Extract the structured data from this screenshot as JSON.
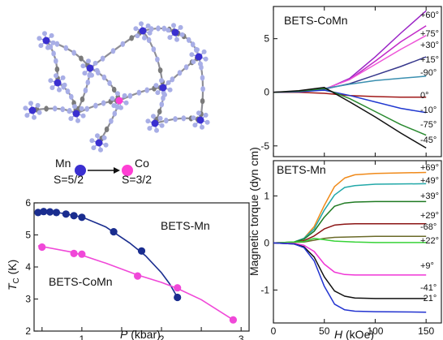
{
  "structure": {
    "mn_label": "Mn",
    "co_label": "Co",
    "mn_spin": "S=5/2",
    "co_spin": "S=3/2",
    "colors": {
      "mn": "#3a2fd0",
      "co": "#ff3fd4",
      "n": "#a8aee6",
      "c": "#7a7a7a"
    }
  },
  "chart_data": [
    {
      "type": "scatter",
      "xlabel_italic": "P",
      "xlabel_unit": " (kbar)",
      "ylabel_main": "T",
      "ylabel_sub": "C",
      "ylabel_unit": " (K)",
      "xlim": [
        0.4,
        3.1
      ],
      "ylim": [
        2,
        6
      ],
      "xticks": [
        0.5,
        1,
        1.5,
        2,
        2.5,
        3
      ],
      "xtick_labels": [
        "",
        "1",
        "",
        "2",
        "",
        "3"
      ],
      "yticks": [
        2,
        3,
        4,
        5,
        6
      ],
      "ytick_labels": [
        "2",
        "3",
        "4",
        "5",
        "6"
      ],
      "series": [
        {
          "name": "BETS-Mn",
          "color": "#1a2d8f",
          "x": [
            0.45,
            0.52,
            0.6,
            0.68,
            0.8,
            0.9,
            1.0,
            1.4,
            1.75,
            2.2
          ],
          "y": [
            5.7,
            5.73,
            5.72,
            5.7,
            5.65,
            5.6,
            5.55,
            5.1,
            4.5,
            3.05
          ],
          "curve_x": [
            0.45,
            0.7,
            1.0,
            1.3,
            1.6,
            1.8,
            2.0,
            2.1,
            2.2
          ],
          "curve_y": [
            5.72,
            5.7,
            5.56,
            5.25,
            4.75,
            4.35,
            3.82,
            3.48,
            3.05
          ]
        },
        {
          "name": "BETS-CoMn",
          "color": "#f048d8",
          "x": [
            0.5,
            0.9,
            1.0,
            1.7,
            2.2,
            2.9
          ],
          "y": [
            4.62,
            4.42,
            4.4,
            3.72,
            3.35,
            2.35
          ],
          "curve_x": [
            0.45,
            0.9,
            1.3,
            1.7,
            2.0,
            2.2,
            2.5,
            2.9
          ],
          "curve_y": [
            4.66,
            4.45,
            4.12,
            3.75,
            3.52,
            3.33,
            2.98,
            2.35
          ]
        }
      ]
    },
    {
      "type": "line",
      "title": "BETS-CoMn",
      "shared_ylabel": "Magnetic torque (dyn cm)",
      "xlim": [
        0,
        165
      ],
      "ylim": [
        -6,
        8
      ],
      "yticks": [
        -5,
        0,
        5
      ],
      "ytick_labels": [
        "-5",
        "0",
        "5"
      ],
      "xticks": [
        0,
        50,
        100,
        150
      ],
      "series": [
        {
          "name": "+60°",
          "color": "#9b24c6",
          "x": [
            0,
            25,
            50,
            75,
            100,
            125,
            150
          ],
          "y": [
            0,
            0.05,
            0.25,
            1.3,
            3.3,
            5.5,
            7.6
          ]
        },
        {
          "name": "+75°",
          "color": "#c22bc8",
          "x": [
            0,
            25,
            50,
            75,
            100,
            125,
            150
          ],
          "y": [
            0,
            0.05,
            0.3,
            1.2,
            2.9,
            4.7,
            6.2
          ]
        },
        {
          "name": "+30°",
          "color": "#ee55d8",
          "x": [
            0,
            25,
            50,
            75,
            100,
            125,
            150
          ],
          "y": [
            0,
            0.05,
            0.3,
            1.2,
            2.6,
            4.0,
            5.3
          ]
        },
        {
          "name": "+15°",
          "color": "#36378c",
          "x": [
            0,
            25,
            50,
            75,
            100,
            125,
            150
          ],
          "y": [
            0,
            0.05,
            0.3,
            0.8,
            1.6,
            2.4,
            3.3
          ]
        },
        {
          "name": "-90°",
          "color": "#3a8fb0",
          "x": [
            0,
            25,
            50,
            75,
            100,
            125,
            150
          ],
          "y": [
            0,
            0.05,
            0.35,
            0.75,
            1.1,
            1.3,
            1.5
          ]
        },
        {
          "name": "0°",
          "color": "#a01818",
          "x": [
            0,
            25,
            50,
            75,
            100,
            125,
            150
          ],
          "y": [
            0,
            0,
            -0.1,
            -0.3,
            -0.4,
            -0.45,
            -0.45
          ]
        },
        {
          "name": "-10°",
          "color": "#2038d0",
          "x": [
            0,
            25,
            50,
            75,
            100,
            125,
            150
          ],
          "y": [
            0,
            0.05,
            0.2,
            -0.3,
            -0.9,
            -1.5,
            -1.9
          ]
        },
        {
          "name": "-75°",
          "color": "#2a8a30",
          "x": [
            0,
            25,
            50,
            75,
            100,
            125,
            150
          ],
          "y": [
            0,
            0.1,
            0.35,
            -0.6,
            -1.8,
            -3.0,
            -4.0
          ]
        },
        {
          "name": "-45°",
          "color": "#111111",
          "x": [
            0,
            25,
            50,
            75,
            100,
            125,
            150
          ],
          "y": [
            0,
            0.15,
            0.45,
            -0.9,
            -2.3,
            -3.8,
            -5.2
          ]
        }
      ]
    },
    {
      "type": "line",
      "title": "BETS-Mn",
      "xlabel_italic": "H",
      "xlabel_unit": " (kOe)",
      "xlim": [
        0,
        165
      ],
      "ylim": [
        -1.7,
        1.75
      ],
      "yticks": [
        -1,
        0,
        1
      ],
      "ytick_labels": [
        "-1",
        "0",
        "1"
      ],
      "xticks": [
        0,
        50,
        100,
        150
      ],
      "xtick_labels": [
        "0",
        "50",
        "100",
        "150"
      ],
      "series": [
        {
          "name": "+69°",
          "color": "#f08a1a",
          "x": [
            0,
            20,
            30,
            40,
            50,
            60,
            70,
            80,
            100,
            150
          ],
          "y": [
            0,
            0.02,
            0.1,
            0.35,
            0.8,
            1.2,
            1.38,
            1.45,
            1.48,
            1.5
          ]
        },
        {
          "name": "+49°",
          "color": "#22a8a8",
          "x": [
            0,
            20,
            30,
            40,
            50,
            60,
            70,
            80,
            100,
            150
          ],
          "y": [
            0,
            0.02,
            0.1,
            0.3,
            0.7,
            1.02,
            1.18,
            1.22,
            1.25,
            1.26
          ]
        },
        {
          "name": "+39°",
          "color": "#1f7a22",
          "x": [
            0,
            20,
            30,
            40,
            50,
            60,
            70,
            80,
            100,
            150
          ],
          "y": [
            0,
            0.02,
            0.08,
            0.25,
            0.55,
            0.78,
            0.85,
            0.87,
            0.88,
            0.88
          ]
        },
        {
          "name": "+29°",
          "color": "#8b1414",
          "x": [
            0,
            20,
            30,
            40,
            50,
            60,
            70,
            80,
            100,
            150
          ],
          "y": [
            0,
            0.01,
            0.05,
            0.15,
            0.3,
            0.38,
            0.4,
            0.41,
            0.41,
            0.41
          ]
        },
        {
          "name": "-68°",
          "color": "#6a6a28",
          "x": [
            0,
            30,
            40,
            50,
            60,
            80,
            100,
            150
          ],
          "y": [
            0,
            0.02,
            0.06,
            0.1,
            0.12,
            0.13,
            0.14,
            0.14
          ]
        },
        {
          "name": "+22°",
          "color": "#37d337",
          "x": [
            0,
            30,
            40,
            50,
            60,
            80,
            100,
            150
          ],
          "y": [
            0,
            0.03,
            0.1,
            0.07,
            0.04,
            0.02,
            0.01,
            0.01
          ]
        },
        {
          "name": "+9°",
          "color": "#f035d6",
          "x": [
            0,
            20,
            30,
            40,
            50,
            60,
            70,
            80,
            100,
            150
          ],
          "y": [
            0,
            -0.01,
            -0.05,
            -0.18,
            -0.45,
            -0.62,
            -0.67,
            -0.68,
            -0.68,
            -0.68
          ]
        },
        {
          "name": "-41°",
          "color": "#111111",
          "x": [
            0,
            20,
            30,
            40,
            50,
            60,
            70,
            80,
            100,
            150
          ],
          "y": [
            0,
            -0.02,
            -0.08,
            -0.3,
            -0.72,
            -1.02,
            -1.13,
            -1.17,
            -1.18,
            -1.18
          ]
        },
        {
          "name": "-21°",
          "color": "#2233d0",
          "x": [
            0,
            20,
            30,
            40,
            50,
            60,
            70,
            80,
            100,
            150
          ],
          "y": [
            0,
            -0.02,
            -0.1,
            -0.38,
            -0.92,
            -1.3,
            -1.42,
            -1.45,
            -1.46,
            -1.47
          ]
        }
      ]
    }
  ]
}
